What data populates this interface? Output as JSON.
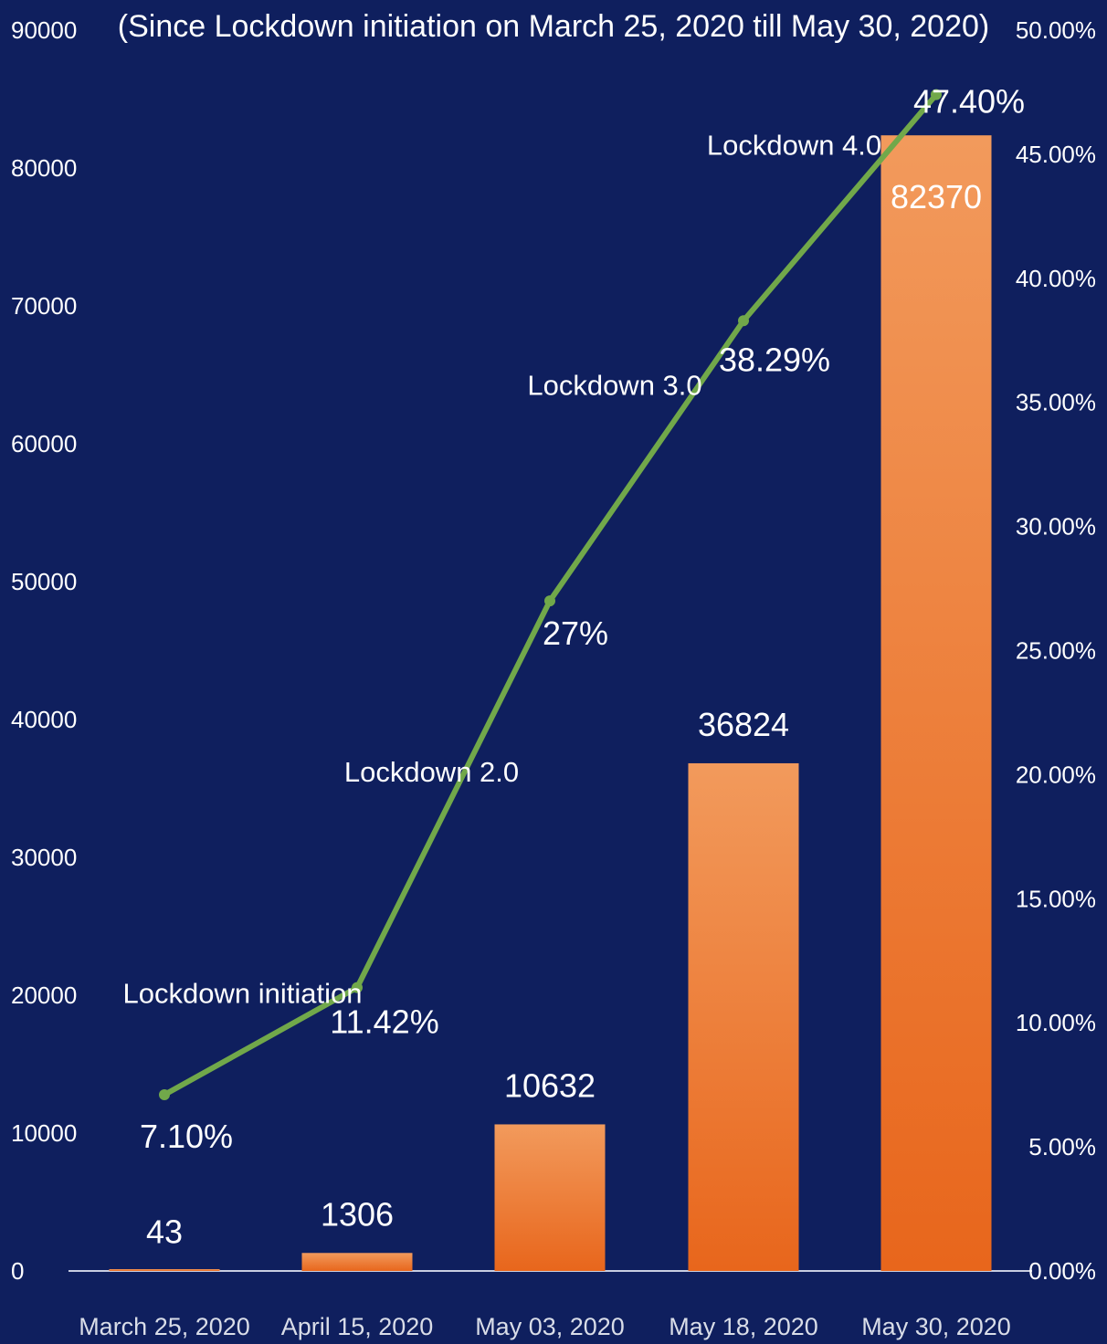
{
  "chart_data": {
    "type": "bar",
    "title": "(Since Lockdown initiation on March 25, 2020 till May 30, 2020)",
    "categories": [
      "March 25, 2020",
      "April 15, 2020",
      "May 03, 2020",
      "May 18, 2020",
      "May 30, 2020"
    ],
    "series": [
      {
        "type": "bar",
        "axis": "left",
        "values": [
          43,
          1306,
          10632,
          36824,
          82370
        ],
        "labels": [
          "43",
          "1306",
          "10632",
          "36824",
          "82370"
        ]
      },
      {
        "type": "line",
        "axis": "right",
        "values": [
          7.1,
          11.42,
          27,
          38.29,
          47.4
        ],
        "labels": [
          "7.10%",
          "11.42%",
          "27%",
          "38.29%",
          "47.40%"
        ]
      }
    ],
    "left_axis": {
      "ylim": [
        0,
        90000
      ],
      "ticks": [
        "0",
        "10000",
        "20000",
        "30000",
        "40000",
        "50000",
        "60000",
        "70000",
        "80000",
        "90000"
      ]
    },
    "right_axis": {
      "ylim": [
        0,
        50
      ],
      "ticks": [
        "0.00%",
        "5.00%",
        "10.00%",
        "15.00%",
        "20.00%",
        "25.00%",
        "30.00%",
        "35.00%",
        "40.00%",
        "45.00%",
        "50.00%"
      ]
    },
    "annotations": [
      "Lockdown initiation",
      "Lockdown 2.0",
      "Lockdown 3.0",
      "Lockdown 4.0"
    ],
    "grid": false,
    "legend": "none",
    "colors": {
      "background": "#0f1f5e",
      "bar_top": "#f29a5c",
      "bar_bottom": "#e8661c",
      "line": "#71a84a",
      "text": "#ffffff",
      "baseline": "#c8cde0"
    }
  }
}
